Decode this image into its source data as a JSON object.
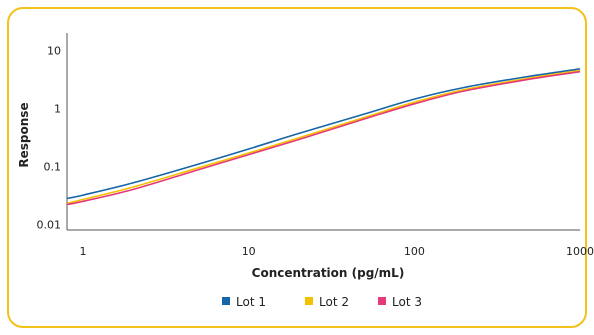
{
  "chart_data": {
    "type": "line",
    "title": "",
    "xlabel": "Concentration (pg/mL)",
    "ylabel": "Response",
    "x_scale": "log",
    "y_scale": "log",
    "xlim": [
      0.8,
      1000
    ],
    "ylim": [
      0.008,
      20
    ],
    "x_ticks": [
      1,
      10,
      100,
      1000
    ],
    "x_tick_labels": [
      "1",
      "10",
      "100",
      "1000"
    ],
    "y_ticks": [
      0.01,
      0.1,
      1,
      10
    ],
    "y_tick_labels": [
      "0.01",
      "0.1",
      "1",
      "10"
    ],
    "grid": false,
    "legend_position": "bottom",
    "x": [
      0.8,
      1,
      2,
      5,
      10,
      20,
      50,
      100,
      200,
      500,
      1000
    ],
    "series": [
      {
        "name": "Lot 1",
        "color": "#1565a8",
        "values": [
          0.028,
          0.032,
          0.052,
          0.11,
          0.2,
          0.37,
          0.8,
          1.45,
          2.3,
          3.6,
          4.8
        ]
      },
      {
        "name": "Lot 2",
        "color": "#f2c200",
        "values": [
          0.023,
          0.027,
          0.044,
          0.095,
          0.17,
          0.31,
          0.7,
          1.28,
          2.1,
          3.35,
          4.5
        ]
      },
      {
        "name": "Lot 3",
        "color": "#e6397a",
        "values": [
          0.022,
          0.025,
          0.04,
          0.088,
          0.16,
          0.29,
          0.66,
          1.2,
          2.0,
          3.2,
          4.3
        ]
      }
    ]
  }
}
